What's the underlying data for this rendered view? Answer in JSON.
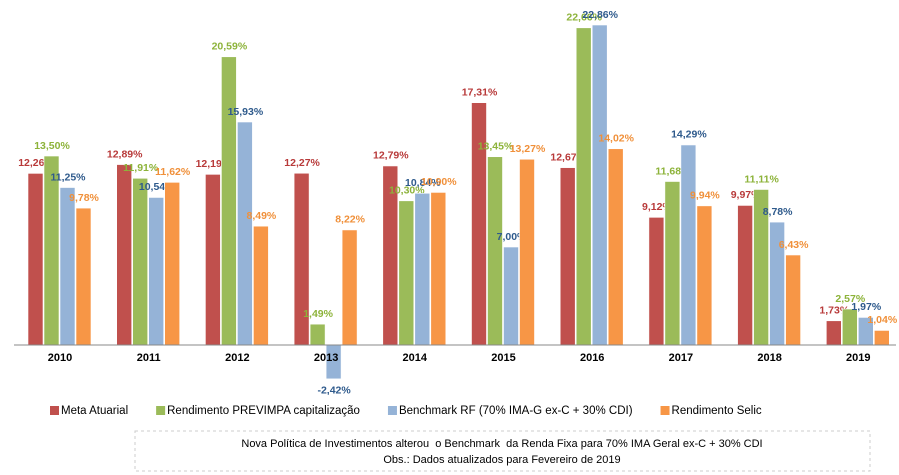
{
  "chart_data": {
    "type": "bar",
    "categories": [
      "2010",
      "2011",
      "2012",
      "2013",
      "2014",
      "2015",
      "2016",
      "2017",
      "2018",
      "2019"
    ],
    "series": [
      {
        "name": "Meta Atuarial",
        "color": "#c0504d",
        "label_color": "#b83a3a",
        "values": [
          12.26,
          12.89,
          12.19,
          12.27,
          12.79,
          17.31,
          12.67,
          9.12,
          9.97,
          1.73
        ],
        "value_labels": [
          "12,26%",
          "12,89%",
          "12,19%",
          "12,27%",
          "12,79%",
          "17,31%",
          "12,67%",
          "9,12%",
          "9,97%",
          "1,73%"
        ]
      },
      {
        "name": "Rendimento PREVIMPA capitalização",
        "color": "#9bbb59",
        "label_color": "#8db33a",
        "values": [
          13.5,
          11.91,
          20.59,
          1.49,
          10.3,
          13.45,
          22.66,
          11.68,
          11.11,
          2.57
        ],
        "value_labels": [
          "13,50%",
          "11,91%",
          "20,59%",
          "1,49%",
          "10,30%",
          "13,45%",
          "22,66%",
          "11,68%",
          "11,11%",
          "2,57%"
        ]
      },
      {
        "name": "Benchmark RF (70% IMA-G ex-C + 30% CDI)",
        "color": "#95b3d7",
        "label_color": "#2e5a8c",
        "values": [
          11.25,
          10.54,
          15.93,
          -2.42,
          10.84,
          7.0,
          22.86,
          14.29,
          8.78,
          1.97
        ],
        "value_labels": [
          "11,25%",
          "10,54%",
          "15,93%",
          "-2,42%",
          "10,84%",
          "7,00%",
          "22,86%",
          "14,29%",
          "8,78%",
          "1,97%"
        ]
      },
      {
        "name": "Rendimento Selic",
        "color": "#f79646",
        "label_color": "#f0903a",
        "values": [
          9.78,
          11.62,
          8.49,
          8.22,
          10.9,
          13.27,
          14.02,
          9.94,
          6.43,
          1.04
        ],
        "value_labels": [
          "9,78%",
          "11,62%",
          "8,49%",
          "8,22%",
          "10,90%",
          "13,27%",
          "14,02%",
          "9,94%",
          "6,43%",
          "1,04%"
        ]
      }
    ],
    "note": [
      "Nova Política de Investimentos alterou  o Benchmark  da Renda Fixa para 70% IMA Geral ex-C + 30% CDI",
      "Obs.: Dados atualizados para Fevereiro de 2019"
    ]
  }
}
